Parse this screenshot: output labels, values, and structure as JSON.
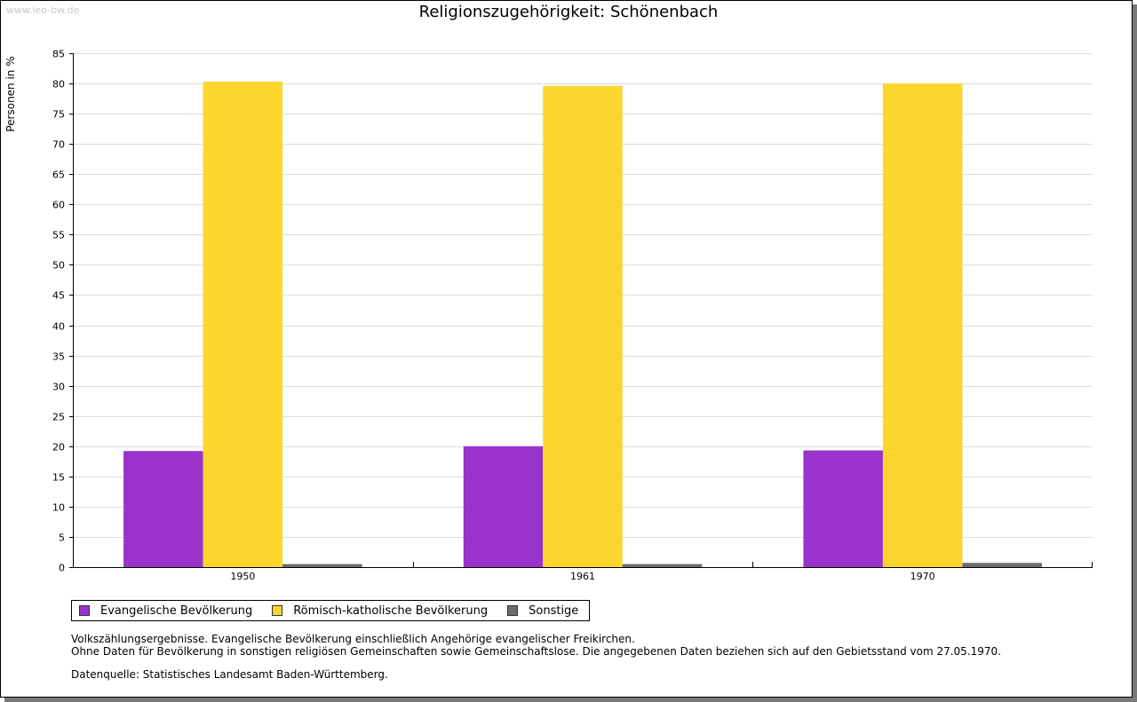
{
  "watermark": "www.leo-bw.de",
  "footnotes": {
    "line1": "Volkszählungsergebnisse. Evangelische Bevölkerung einschließlich Angehörige evangelischer Freikirchen.",
    "line2": "Ohne Daten für Bevölkerung in sonstigen religiösen Gemeinschaften sowie Gemeinschaftslose. Die angegebenen Daten beziehen sich auf den Gebietsstand vom 27.05.1970.",
    "source": "Datenquelle: Statistisches Landesamt Baden-Württemberg."
  },
  "chart_data": {
    "type": "bar",
    "title": "Religionszugehörigkeit: Schönenbach",
    "xlabel": "",
    "ylabel": "Personen in %",
    "ylim": [
      0,
      85
    ],
    "ytick_step": 5,
    "grid": true,
    "legend_position": "bottom-left",
    "categories": [
      "1950",
      "1961",
      "1970"
    ],
    "series": [
      {
        "name": "Evangelische Bevölkerung",
        "color": "#9933cc",
        "values": [
          19.2,
          20.0,
          19.3
        ]
      },
      {
        "name": "Römisch-katholische Bevölkerung",
        "color": "#fcd62e",
        "values": [
          80.3,
          79.6,
          80.0
        ]
      },
      {
        "name": "Sonstige",
        "color": "#6d6d6d",
        "values": [
          0.5,
          0.5,
          0.7
        ]
      }
    ]
  }
}
